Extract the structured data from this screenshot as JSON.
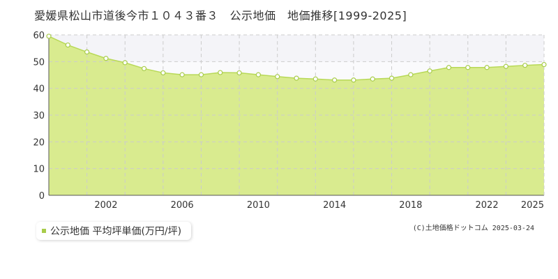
{
  "title": "愛媛県松山市道後今市１０４３番３　公示地価　地価推移[1999-2025]",
  "legend_label": "公示地価 平均坪単価(万円/坪)",
  "copyright": "(C)土地価格ドットコム 2025-03-24",
  "colors": {
    "fill": "#d9eb8f",
    "line": "#b8d957",
    "marker_stroke": "#a8cc4a",
    "legend_marker": "#a8cc4a",
    "grid": "#cccccc",
    "band": "#f4f4f8"
  },
  "chart_data": {
    "type": "area",
    "x": [
      1999,
      2000,
      2001,
      2002,
      2003,
      2004,
      2005,
      2006,
      2007,
      2008,
      2009,
      2010,
      2011,
      2012,
      2013,
      2014,
      2015,
      2016,
      2017,
      2018,
      2019,
      2020,
      2021,
      2022,
      2023,
      2024,
      2025
    ],
    "series": [
      {
        "name": "公示地価 平均坪単価(万円/坪)",
        "values": [
          59.5,
          56.2,
          53.6,
          51.2,
          49.6,
          47.4,
          45.8,
          45.1,
          45.1,
          45.9,
          45.8,
          45.1,
          44.4,
          43.8,
          43.5,
          43.1,
          43.1,
          43.5,
          43.8,
          45.1,
          46.5,
          47.8,
          47.8,
          47.8,
          48.2,
          48.6,
          48.9
        ]
      }
    ],
    "y_ticks": [
      0,
      10,
      20,
      30,
      40,
      50,
      60
    ],
    "x_tick_labels": [
      "2002",
      "2006",
      "2010",
      "2014",
      "2018",
      "2022",
      "2025"
    ],
    "ylim": [
      0,
      60
    ],
    "xlim": [
      1999,
      2025
    ],
    "grid": true
  }
}
